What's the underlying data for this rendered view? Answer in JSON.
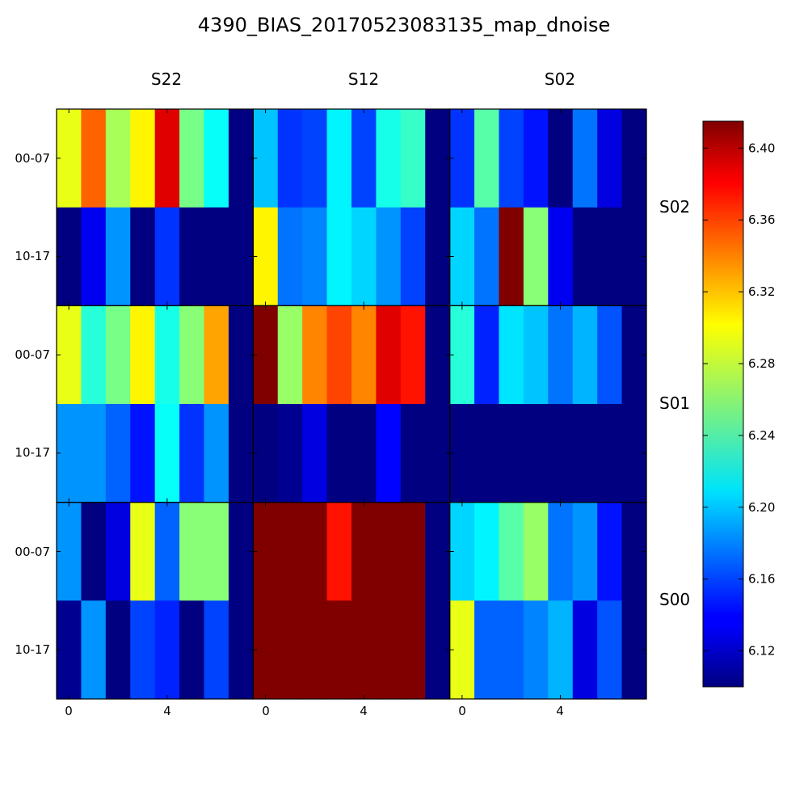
{
  "chart_data": {
    "type": "heatmap",
    "title": "4390_BIAS_20170523083135_map_dnoise",
    "column_groups": [
      "S22",
      "S12",
      "S02"
    ],
    "row_groups": [
      "S02",
      "S01",
      "S00"
    ],
    "row_tick_labels": [
      "00-07",
      "10-17"
    ],
    "x_tick_labels": [
      "0",
      "4"
    ],
    "colorbar": {
      "colormap": "jet",
      "vmin": 6.1,
      "vmax": 6.415,
      "ticks": [
        6.12,
        6.16,
        6.2,
        6.24,
        6.28,
        6.32,
        6.36,
        6.4
      ],
      "tick_labels": [
        "6.12",
        "6.16",
        "6.20",
        "6.24",
        "6.28",
        "6.32",
        "6.36",
        "6.40"
      ]
    },
    "cells": [
      [
        [
          [
            6.29,
            6.345,
            6.27,
            6.3,
            6.385,
            6.255,
            6.22,
            6.1
          ],
          [
            6.1,
            6.135,
            6.185,
            6.1,
            6.155,
            6.1,
            6.1,
            6.1
          ]
        ],
        [
          [
            6.2,
            6.155,
            6.16,
            6.215,
            6.16,
            6.225,
            6.235,
            6.1
          ],
          [
            6.3,
            6.175,
            6.18,
            6.215,
            6.205,
            6.185,
            6.16,
            6.1
          ]
        ],
        [
          [
            6.155,
            6.245,
            6.16,
            6.145,
            6.1,
            6.175,
            6.13,
            6.1
          ],
          [
            6.205,
            6.175,
            6.415,
            6.26,
            6.135,
            6.1,
            6.1,
            6.1
          ]
        ]
      ],
      [
        [
          [
            6.29,
            6.23,
            6.255,
            6.3,
            6.225,
            6.26,
            6.325,
            6.1
          ],
          [
            6.185,
            6.185,
            6.17,
            6.145,
            6.22,
            6.155,
            6.185,
            6.1
          ]
        ],
        [
          [
            6.415,
            6.265,
            6.335,
            6.355,
            6.335,
            6.385,
            6.37,
            6.1
          ],
          [
            6.1,
            6.105,
            6.13,
            6.1,
            6.1,
            6.14,
            6.1,
            6.1
          ]
        ],
        [
          [
            6.23,
            6.15,
            6.21,
            6.2,
            6.175,
            6.195,
            6.165,
            6.1
          ],
          [
            6.1,
            6.1,
            6.1,
            6.1,
            6.1,
            6.1,
            6.1,
            6.1
          ]
        ]
      ],
      [
        [
          [
            6.185,
            6.1,
            6.13,
            6.29,
            6.17,
            6.26,
            6.26,
            6.1
          ],
          [
            6.105,
            6.185,
            6.1,
            6.16,
            6.15,
            6.1,
            6.16,
            6.1
          ]
        ],
        [
          [
            6.415,
            6.415,
            6.415,
            6.37,
            6.415,
            6.415,
            6.415,
            6.1
          ],
          [
            6.415,
            6.415,
            6.415,
            6.415,
            6.415,
            6.415,
            6.415,
            6.1
          ]
        ],
        [
          [
            6.205,
            6.215,
            6.245,
            6.265,
            6.175,
            6.185,
            6.145,
            6.1
          ],
          [
            6.29,
            6.17,
            6.17,
            6.18,
            6.195,
            6.13,
            6.165,
            6.1
          ]
        ]
      ]
    ]
  }
}
